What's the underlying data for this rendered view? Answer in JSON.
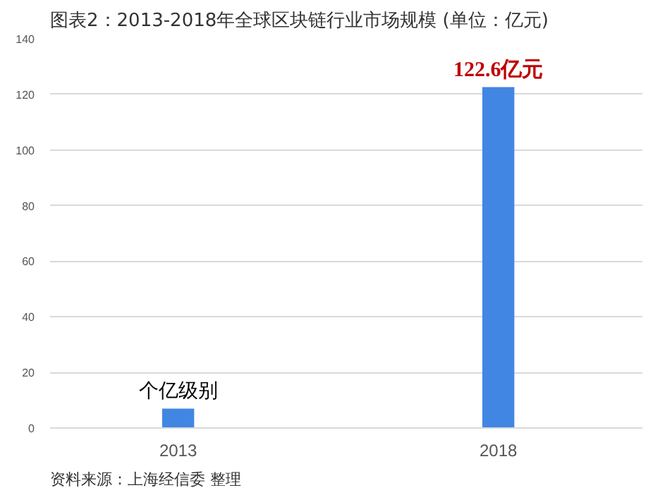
{
  "chart_data": {
    "type": "bar",
    "title": "图表2：2013-2018年全球区块链行业市场规模 (单位：亿元)",
    "categories": [
      "2013",
      "2018"
    ],
    "series": [
      {
        "color": "#4286e3",
        "values": [
          7,
          122.6
        ]
      }
    ],
    "ylim": [
      0,
      140
    ],
    "yticks": [
      0,
      20,
      40,
      60,
      80,
      100,
      120,
      140
    ],
    "grid": "y",
    "annotations": [
      {
        "text": "个亿级别",
        "x": "2013",
        "y": 7
      },
      {
        "text": "122.6亿元",
        "x": "2018",
        "y": 122.6
      },
      "资料来源：上海经信委 整理"
    ]
  }
}
